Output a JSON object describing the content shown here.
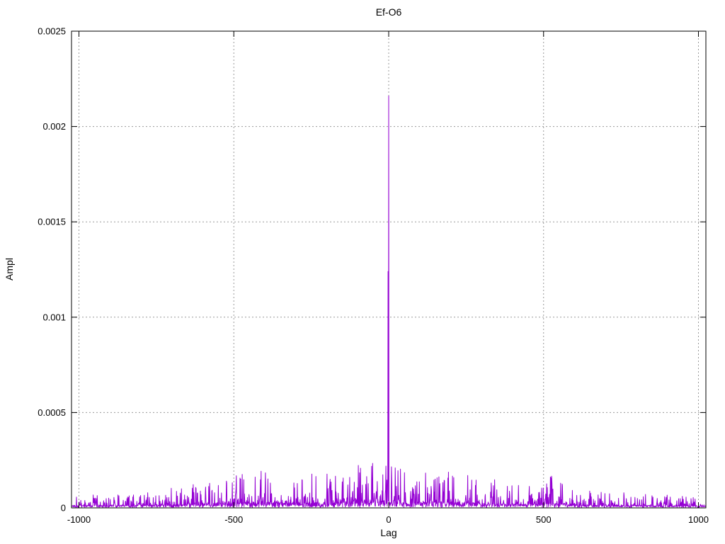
{
  "chart_data": {
    "type": "line",
    "title": "Ef-O6",
    "xlabel": "Lag",
    "ylabel": "Ampl",
    "xlim": [
      -1024,
      1024
    ],
    "ylim": [
      0,
      0.0025
    ],
    "x_ticks": [
      {
        "v": -1000,
        "label": "-1000"
      },
      {
        "v": -500,
        "label": "-500"
      },
      {
        "v": 0,
        "label": "0"
      },
      {
        "v": 500,
        "label": "500"
      },
      {
        "v": 1000,
        "label": "1000"
      }
    ],
    "y_ticks": [
      {
        "v": 0,
        "label": "0"
      },
      {
        "v": 0.0005,
        "label": "0.0005"
      },
      {
        "v": 0.001,
        "label": "0.001"
      },
      {
        "v": 0.0015,
        "label": "0.0015"
      },
      {
        "v": 0.002,
        "label": "0.002"
      },
      {
        "v": 0.0025,
        "label": "0.0025"
      }
    ],
    "grid": true,
    "legend_position": "none",
    "line_color": "#9400D3",
    "grid_color": "#999999",
    "border_color": "#000000",
    "peak_points": [
      {
        "lag": 0,
        "ampl": 0.00216
      },
      {
        "lag": -2,
        "ampl": 0.00124
      }
    ],
    "noise": {
      "description": "dense positive noise floor, amplitude grows toward lag 0",
      "seed": 1337,
      "lag_min": -1024,
      "lag_max": 1024,
      "step": 1,
      "floor": 3e-06,
      "envelope": [
        [
          -1024,
          6e-05
        ],
        [
          -900,
          7e-05
        ],
        [
          -700,
          9e-05
        ],
        [
          -500,
          0.00016
        ],
        [
          -400,
          0.00018
        ],
        [
          -300,
          0.00014
        ],
        [
          -250,
          0.00016
        ],
        [
          -150,
          0.0002
        ],
        [
          -60,
          0.00022
        ],
        [
          0,
          0.00022
        ],
        [
          60,
          0.00016
        ],
        [
          150,
          0.00018
        ],
        [
          250,
          0.00016
        ],
        [
          350,
          0.00013
        ],
        [
          450,
          0.00012
        ],
        [
          520,
          0.00015
        ],
        [
          600,
          8e-05
        ],
        [
          750,
          7e-05
        ],
        [
          900,
          6e-05
        ],
        [
          1024,
          6e-05
        ]
      ]
    }
  }
}
